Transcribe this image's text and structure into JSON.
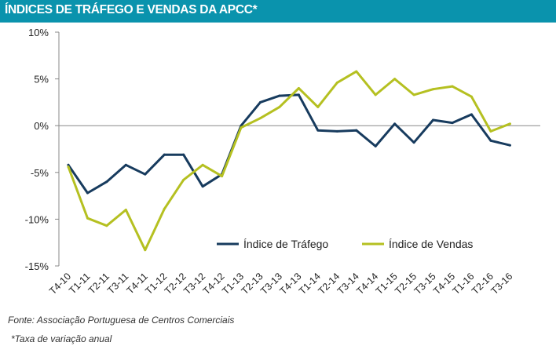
{
  "header": {
    "title": "ÍNDICES DE TRÁFEGO E VENDAS DA APCC*"
  },
  "footer": {
    "source": "Fonte: Associação Portuguesa de Centros Comerciais",
    "footnote": "*Taxa de variação anual"
  },
  "colors": {
    "header_bg": "#0a93ad",
    "trafego": "#173b5e",
    "vendas": "#b5c021",
    "axis": "#888888"
  },
  "chart_data": {
    "type": "line",
    "title": "ÍNDICES DE TRÁFEGO E VENDAS DA APCC*",
    "xlabel": "",
    "ylabel": "",
    "ylim": [
      -15,
      10
    ],
    "yticks": [
      10,
      5,
      0,
      -5,
      -10,
      -15
    ],
    "ytick_labels": [
      "10%",
      "5%",
      "0%",
      "-5%",
      "-10%",
      "-15%"
    ],
    "grid": false,
    "legend_position": "bottom-right-inside",
    "categories": [
      "T4-10",
      "T1-11",
      "T2-11",
      "T3-11",
      "T4-11",
      "T1-12",
      "T2-12",
      "T3-12",
      "T4-12",
      "T1-13",
      "T2-13",
      "T3-13",
      "T4-13",
      "T1-14",
      "T2-14",
      "T3-14",
      "T4-14",
      "T1-15",
      "T2-15",
      "T3-15",
      "T4-15",
      "T1-16",
      "T2-16",
      "T3-16"
    ],
    "series": [
      {
        "name": "Índice de Tráfego",
        "color": "#173b5e",
        "values": [
          -4.2,
          -7.2,
          -6.0,
          -4.2,
          -5.2,
          -3.1,
          -3.1,
          -6.5,
          -5.2,
          0.0,
          2.5,
          3.2,
          3.3,
          -0.5,
          -0.6,
          -0.5,
          -2.2,
          0.2,
          -1.8,
          0.6,
          0.3,
          1.2,
          -1.6,
          -2.1
        ]
      },
      {
        "name": "Índice de Vendas",
        "color": "#b5c021",
        "values": [
          -4.4,
          -9.9,
          -10.7,
          -9.0,
          -13.3,
          -8.9,
          -5.8,
          -4.2,
          -5.4,
          -0.2,
          0.8,
          2.0,
          4.0,
          2.0,
          4.6,
          5.8,
          3.3,
          5.0,
          3.3,
          3.9,
          4.2,
          3.1,
          -0.6,
          0.2
        ]
      }
    ]
  }
}
